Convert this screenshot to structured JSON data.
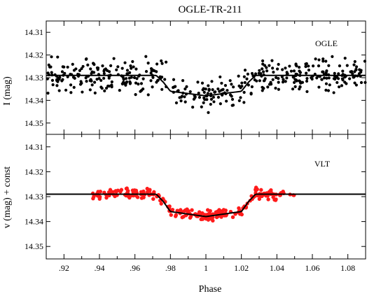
{
  "chart_data": [
    {
      "type": "scatter",
      "title": "OGLE-TR-211",
      "panel_label": "OGLE",
      "xlabel": "",
      "ylabel": "I (mag)",
      "xlim": [
        0.91,
        1.09
      ],
      "ylim": [
        14.355,
        14.305
      ],
      "y_inverted": true,
      "yticks": [
        14.31,
        14.32,
        14.33,
        14.34,
        14.35
      ],
      "ytick_labels": [
        "14.31",
        "14.32",
        "14.33",
        "14.34",
        "14.35"
      ],
      "grid": false,
      "marker_color": "#000000",
      "series": [
        {
          "kind": "points",
          "point_count": 450,
          "x_range": [
            0.91,
            1.09
          ],
          "scatter_sigma_mag": 0.0035
        },
        {
          "kind": "model_line",
          "x": [
            0.91,
            0.972,
            0.976,
            0.98,
            1.0,
            1.02,
            1.024,
            1.028,
            1.09
          ],
          "y": [
            14.329,
            14.329,
            14.332,
            14.336,
            14.338,
            14.336,
            14.332,
            14.329,
            14.329
          ]
        }
      ]
    },
    {
      "type": "scatter",
      "panel_label": "VLT",
      "xlabel": "Phase",
      "ylabel": "v (mag) + const",
      "xlim": [
        0.91,
        1.09
      ],
      "ylim": [
        14.355,
        14.305
      ],
      "y_inverted": true,
      "xticks": [
        0.92,
        0.94,
        0.96,
        0.98,
        1.0,
        1.02,
        1.04,
        1.06,
        1.08
      ],
      "xtick_labels": [
        ".92",
        ".94",
        ".96",
        ".98",
        "1",
        "1.02",
        "1.04",
        "1.06",
        "1.08"
      ],
      "yticks": [
        14.31,
        14.32,
        14.33,
        14.34,
        14.35
      ],
      "ytick_labels": [
        "14.31",
        "14.32",
        "14.33",
        "14.34",
        "14.35"
      ],
      "grid": false,
      "marker_color": "#ff1a1a",
      "series": [
        {
          "kind": "points",
          "point_count": 230,
          "x_range": [
            0.936,
            1.05
          ],
          "scatter_sigma_mag": 0.001
        },
        {
          "kind": "model_line",
          "x": [
            0.91,
            0.972,
            0.976,
            0.98,
            1.0,
            1.02,
            1.024,
            1.028,
            1.09
          ],
          "y": [
            14.329,
            14.329,
            14.332,
            14.336,
            14.338,
            14.336,
            14.332,
            14.329,
            14.329
          ]
        }
      ]
    }
  ]
}
